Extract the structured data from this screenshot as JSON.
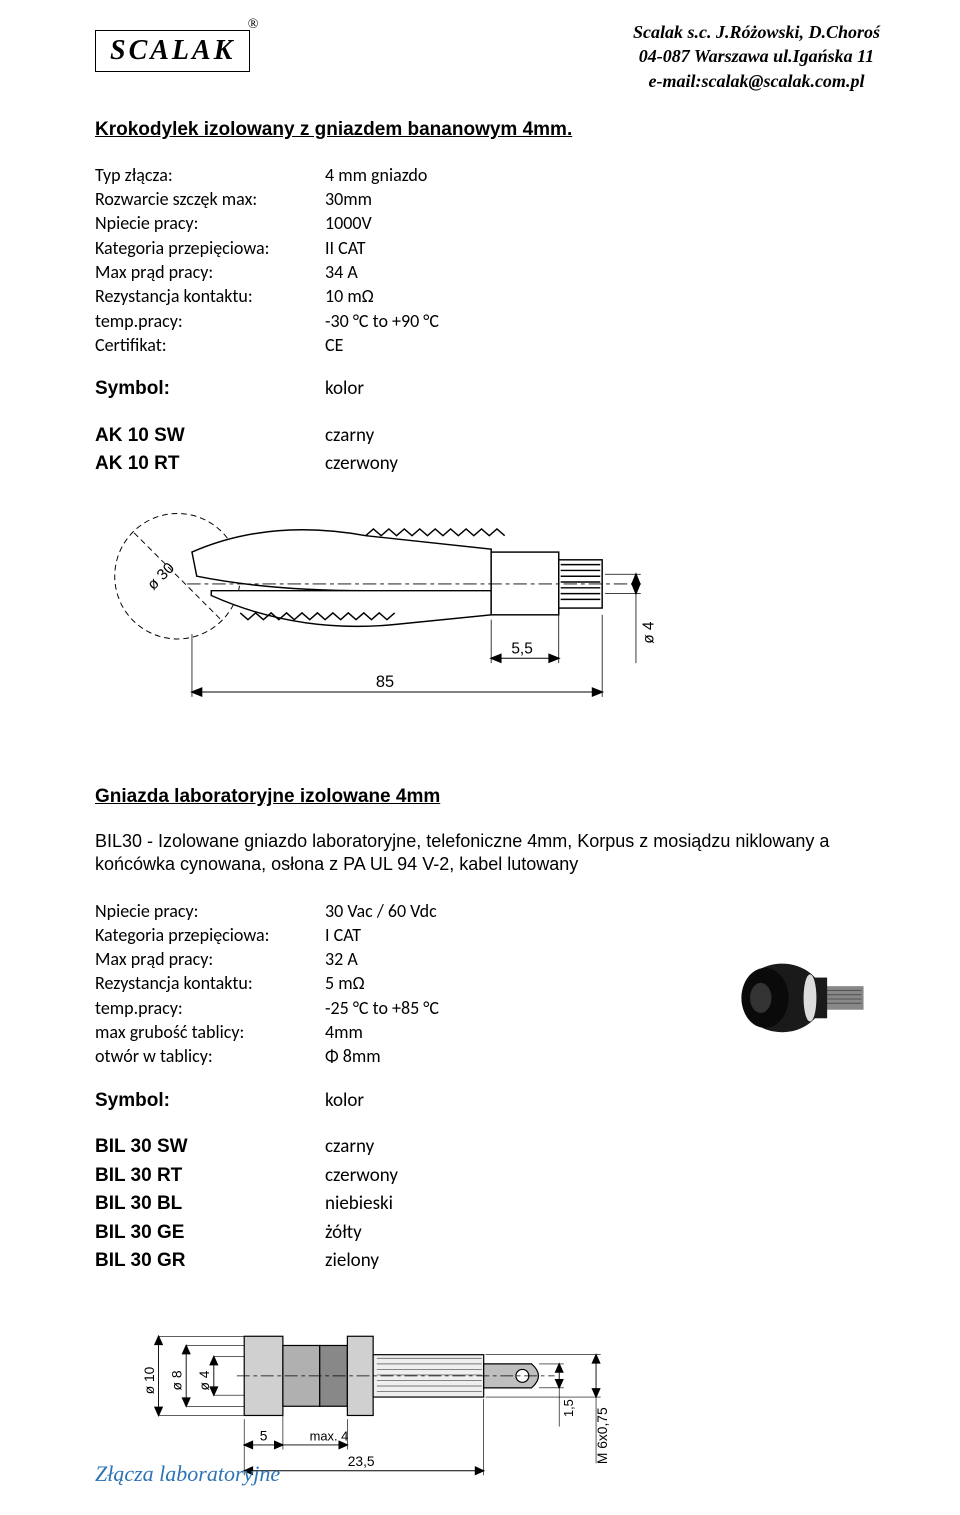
{
  "header": {
    "logo_text": "SCALAK",
    "registered": "®",
    "line1": "Scalak s.c. J.Różowski, D.Choroś",
    "line2": "04-087 Warszawa ul.Igańska 11",
    "line3": "e-mail:scalak@scalak.com.pl"
  },
  "section1": {
    "title": "Krokodylek izolowany z gniazdem bananowym 4mm.",
    "specs": [
      {
        "label": "Typ złącza:",
        "value": "4 mm gniazdo"
      },
      {
        "label": "Rozwarcie szczęk max:",
        "value": "30mm"
      },
      {
        "label": "Npiecie pracy:",
        "value": "1000V"
      },
      {
        "label": "Kategoria przepięciowa:",
        "value": "II CAT"
      },
      {
        "label": "Max prąd pracy:",
        "value": "34 A"
      },
      {
        "label": "Rezystancja kontaktu:",
        "value": "10 mΩ"
      },
      {
        "label": "temp.pracy:",
        "value": "-30 °C to +90 °C"
      },
      {
        "label": "Certifikat:",
        "value": "CE"
      }
    ],
    "symbol_header": {
      "label": "Symbol:",
      "value": "kolor"
    },
    "symbols": [
      {
        "label": "AK 10 SW",
        "value": "czarny"
      },
      {
        "label": "AK 10 RT",
        "value": "czerwony"
      }
    ],
    "figure": {
      "diam_label": "ø 30",
      "length_label": "85",
      "width_label": "5,5",
      "d4_label": "ø 4",
      "colors": {
        "stroke": "#000000",
        "fill": "#ffffff",
        "teeth": "#000000"
      }
    }
  },
  "section2": {
    "title": "Gniazda laboratoryjne izolowane 4mm",
    "desc": "BIL30 - Izolowane gniazdo laboratoryjne, telefoniczne 4mm, Korpus z mosiądzu niklowany a końcówka cynowana, osłona z PA UL 94 V-2, kabel lutowany",
    "specs": [
      {
        "label": "Npiecie pracy:",
        "value": "30 Vac / 60 Vdc"
      },
      {
        "label": "Kategoria przepięciowa:",
        "value": "I CAT"
      },
      {
        "label": "Max prąd pracy:",
        "value": "32 A"
      },
      {
        "label": "Rezystancja kontaktu:",
        "value": "5 mΩ"
      },
      {
        "label": "temp.pracy:",
        "value": "-25 °C to +85 °C"
      },
      {
        "label": "max grubość tablicy:",
        "value": "4mm"
      },
      {
        "label": "otwór w tablicy:",
        "value": "Φ 8mm"
      }
    ],
    "symbol_header": {
      "label": "Symbol:",
      "value": "kolor"
    },
    "symbols": [
      {
        "label": "BIL 30 SW",
        "value": "czarny"
      },
      {
        "label": "BIL 30 RT",
        "value": "czerwony"
      },
      {
        "label": "BIL 30 BL",
        "value": "niebieski"
      },
      {
        "label": "BIL 30 GE",
        "value": "żółty"
      },
      {
        "label": "BIL 30 GR",
        "value": "zielony"
      }
    ],
    "jack": {
      "body_color": "#1a1a1a",
      "metal_color": "#b8b8b8",
      "thread_color": "#888888"
    },
    "dim_figure": {
      "d10": "ø 10",
      "d8": "ø 8",
      "d4": "ø 4",
      "l5": "5",
      "max4": "max. 4",
      "l235": "23,5",
      "l15": "1,5",
      "thread": "M 6x0,75",
      "stroke": "#000000"
    }
  },
  "footer": "Złącza laboratoryjne"
}
